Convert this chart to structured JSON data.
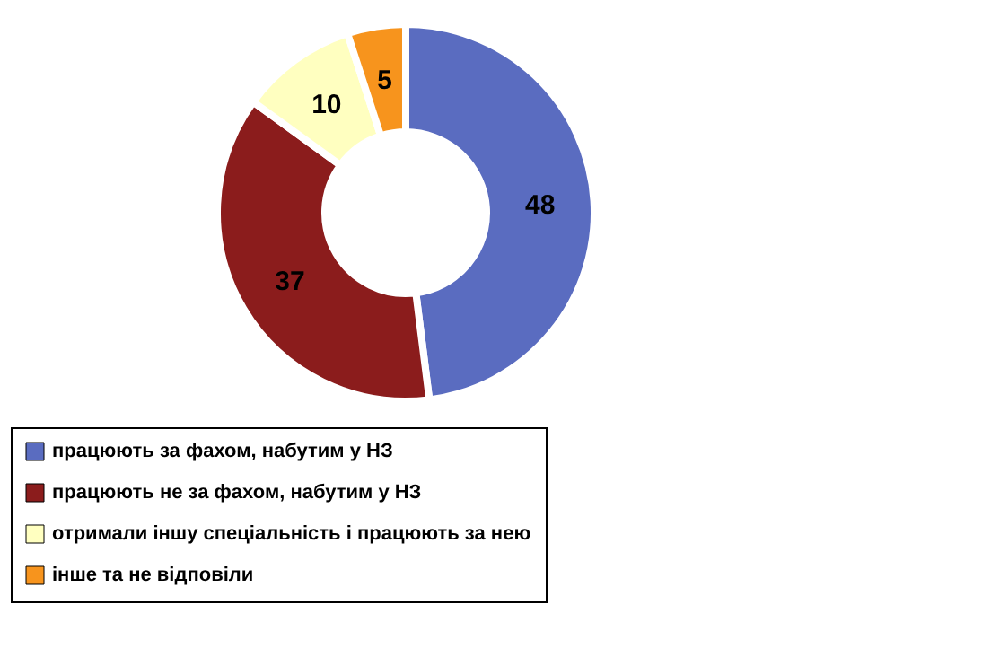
{
  "chart_data": {
    "type": "donut",
    "categories": [
      "працюють за фахом, набутим у НЗ",
      "працюють не за фахом, набутим у НЗ",
      "отримали іншу спеціальність і працюють за нею",
      "інше та не відповіли"
    ],
    "values": [
      48,
      37,
      10,
      5
    ],
    "colors": [
      "#5a6cc0",
      "#8b1c1c",
      "#ffffc0",
      "#f7941d"
    ],
    "data_labels": true,
    "legend": "bottom"
  }
}
